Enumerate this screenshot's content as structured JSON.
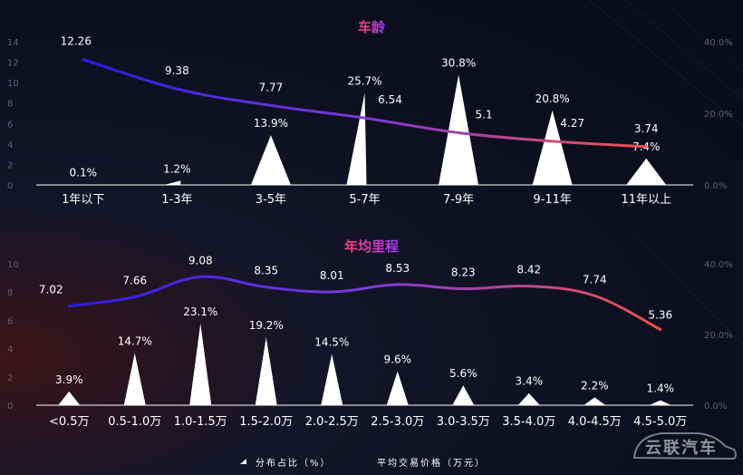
{
  "colors": {
    "title_start": "#ff3d6e",
    "title_end": "#9b3cff",
    "line_start": "#2b1ae6",
    "line_mid": "#7a3bd9",
    "line_end": "#f0524a",
    "bars": "#ffffff",
    "background": "#0c0e1e"
  },
  "legend": {
    "bars_label": "分布占比（%）",
    "line_label": "平均交易价格（万元）"
  },
  "watermark": "云联汽车",
  "chart_data": [
    {
      "type": "bar",
      "title": "车龄",
      "categories": [
        "1年以下",
        "1-3年",
        "3-5年",
        "5-7年",
        "7-9年",
        "9-11年",
        "11年以上"
      ],
      "series": [
        {
          "name": "分布占比（%）",
          "type": "bar",
          "axis": "right",
          "values": [
            0.1,
            1.2,
            13.9,
            25.7,
            30.8,
            20.8,
            7.4
          ],
          "labels": [
            "0.1%",
            "1.2%",
            "13.9%",
            "25.7%",
            "30.8%",
            "20.8%",
            "7.4%"
          ]
        },
        {
          "name": "平均交易价格（万元）",
          "type": "line",
          "axis": "left",
          "values": [
            12.26,
            9.38,
            7.77,
            6.54,
            5.1,
            4.27,
            3.74
          ],
          "labels": [
            "12.26",
            "9.38",
            "7.77",
            "6.54",
            "5.1",
            "4.27",
            "3.74"
          ]
        }
      ],
      "y_left": {
        "ticks": [
          "0",
          "2",
          "4",
          "6",
          "8",
          "10",
          "12",
          "14"
        ],
        "ylim": [
          0,
          14
        ]
      },
      "y_right": {
        "ticks": [
          "0.0%",
          "20.0%",
          "40.0%"
        ],
        "ylim": [
          0,
          40
        ]
      }
    },
    {
      "type": "bar",
      "title": "年均里程",
      "categories": [
        "<0.5万",
        "0.5-1.0万",
        "1.0-1.5万",
        "1.5-2.0万",
        "2.0-2.5万",
        "2.5-3.0万",
        "3.0-3.5万",
        "3.5-4.0万",
        "4.0-4.5万",
        "4.5-5.0万"
      ],
      "series": [
        {
          "name": "分布占比（%）",
          "type": "bar",
          "axis": "right",
          "values": [
            3.9,
            14.7,
            23.1,
            19.2,
            14.5,
            9.6,
            5.6,
            3.4,
            2.2,
            1.4
          ],
          "labels": [
            "3.9%",
            "14.7%",
            "23.1%",
            "19.2%",
            "14.5%",
            "9.6%",
            "5.6%",
            "3.4%",
            "2.2%",
            "1.4%"
          ]
        },
        {
          "name": "平均交易价格（万元）",
          "type": "line",
          "axis": "left",
          "values": [
            7.02,
            7.66,
            9.08,
            8.35,
            8.01,
            8.53,
            8.23,
            8.42,
            7.74,
            5.36
          ],
          "labels": [
            "7.02",
            "7.66",
            "9.08",
            "8.35",
            "8.01",
            "8.53",
            "8.23",
            "8.42",
            "7.74",
            "5.36"
          ]
        }
      ],
      "y_left": {
        "ticks": [
          "0",
          "2",
          "4",
          "6",
          "8",
          "10"
        ],
        "ylim": [
          0,
          10
        ]
      },
      "y_right": {
        "ticks": [
          "0.0%",
          "20.0%",
          "40.0%"
        ],
        "ylim": [
          0,
          40
        ]
      }
    }
  ]
}
